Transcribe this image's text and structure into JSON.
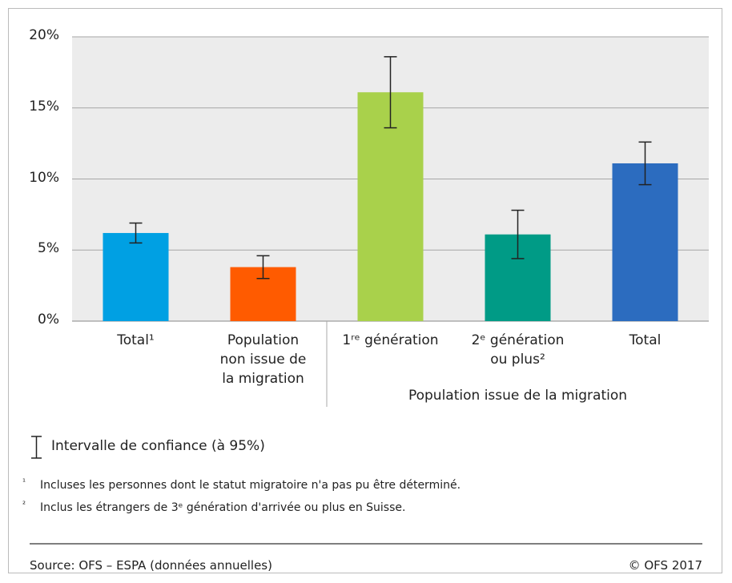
{
  "chart_data": {
    "type": "bar",
    "categories": [
      "Total¹",
      "Population\nnon issue de\nla migration",
      "1ʳᵉ génération",
      "2ᵉ génération\nou plus²",
      "Total"
    ],
    "group_label": "Population issue de la migration",
    "values": [
      6.2,
      3.8,
      16.1,
      6.1,
      11.1
    ],
    "errors": [
      0.7,
      0.8,
      2.5,
      1.7,
      1.5
    ],
    "colors": [
      "#00a0e3",
      "#ff5b00",
      "#a9d14b",
      "#009b86",
      "#2c6cbf"
    ],
    "ylim": [
      0,
      20
    ],
    "yticks": [
      {
        "value": 0,
        "label": "0%"
      },
      {
        "value": 5,
        "label": "5%"
      },
      {
        "value": 10,
        "label": "10%"
      },
      {
        "value": 15,
        "label": "15%"
      },
      {
        "value": 20,
        "label": "20%"
      }
    ],
    "grid": true,
    "legend": "Intervalle de confiance (à 95%)",
    "notes": [
      {
        "marker": "¹",
        "text": "Incluses les personnes dont le statut migratoire n'a pas pu être déterminé."
      },
      {
        "marker": "²",
        "text": "Inclus les étrangers de 3ᵉ génération d'arrivée ou plus en Suisse."
      }
    ],
    "source": "Source: OFS – ESPA (données annuelles)",
    "copyright": "© OFS 2017"
  }
}
